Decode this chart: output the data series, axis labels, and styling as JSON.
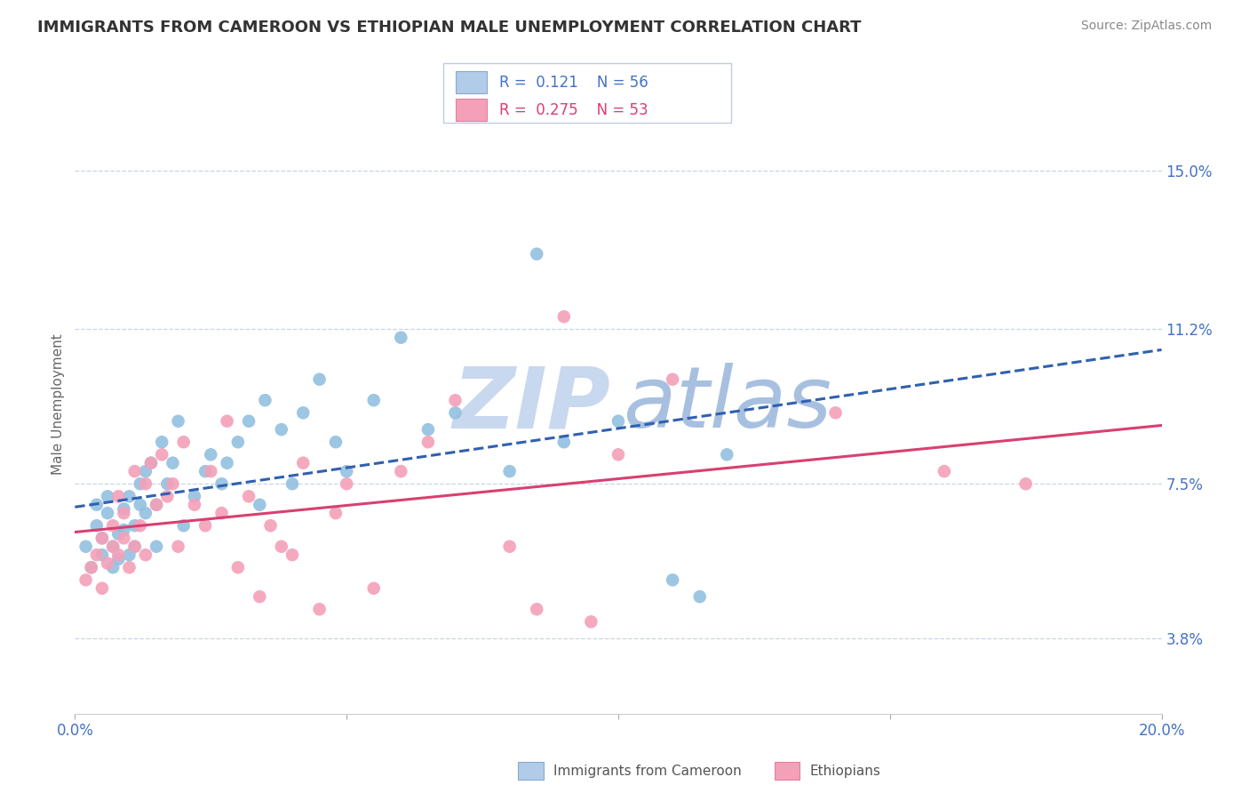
{
  "title": "IMMIGRANTS FROM CAMEROON VS ETHIOPIAN MALE UNEMPLOYMENT CORRELATION CHART",
  "source": "Source: ZipAtlas.com",
  "ylabel": "Male Unemployment",
  "xlim": [
    0.0,
    0.2
  ],
  "ylim": [
    0.02,
    0.168
  ],
  "yticks": [
    0.038,
    0.075,
    0.112,
    0.15
  ],
  "ytick_labels": [
    "3.8%",
    "7.5%",
    "11.2%",
    "15.0%"
  ],
  "xticks": [
    0.0,
    0.05,
    0.1,
    0.15,
    0.2
  ],
  "xtick_labels": [
    "0.0%",
    "",
    "",
    "",
    "20.0%"
  ],
  "series": [
    {
      "name": "Immigrants from Cameroon",
      "R": 0.121,
      "N": 56,
      "color": "#92c0e0",
      "line_color": "#3060b0",
      "line_style": "--",
      "x": [
        0.002,
        0.003,
        0.004,
        0.004,
        0.005,
        0.005,
        0.006,
        0.006,
        0.007,
        0.007,
        0.008,
        0.008,
        0.009,
        0.009,
        0.01,
        0.01,
        0.011,
        0.011,
        0.012,
        0.012,
        0.013,
        0.013,
        0.014,
        0.015,
        0.015,
        0.016,
        0.017,
        0.018,
        0.019,
        0.02,
        0.022,
        0.024,
        0.025,
        0.027,
        0.028,
        0.03,
        0.032,
        0.034,
        0.035,
        0.038,
        0.04,
        0.042,
        0.045,
        0.048,
        0.05,
        0.055,
        0.06,
        0.065,
        0.07,
        0.08,
        0.085,
        0.09,
        0.1,
        0.11,
        0.115,
        0.12
      ],
      "y": [
        0.06,
        0.055,
        0.065,
        0.07,
        0.058,
        0.062,
        0.068,
        0.072,
        0.055,
        0.06,
        0.063,
        0.057,
        0.064,
        0.069,
        0.058,
        0.072,
        0.06,
        0.065,
        0.07,
        0.075,
        0.068,
        0.078,
        0.08,
        0.06,
        0.07,
        0.085,
        0.075,
        0.08,
        0.09,
        0.065,
        0.072,
        0.078,
        0.082,
        0.075,
        0.08,
        0.085,
        0.09,
        0.07,
        0.095,
        0.088,
        0.075,
        0.092,
        0.1,
        0.085,
        0.078,
        0.095,
        0.11,
        0.088,
        0.092,
        0.078,
        0.13,
        0.085,
        0.09,
        0.052,
        0.048,
        0.082
      ]
    },
    {
      "name": "Ethiopians",
      "R": 0.275,
      "N": 53,
      "color": "#f4a0b8",
      "line_color": "#d84070",
      "line_style": "-",
      "x": [
        0.002,
        0.003,
        0.004,
        0.005,
        0.005,
        0.006,
        0.007,
        0.007,
        0.008,
        0.008,
        0.009,
        0.009,
        0.01,
        0.011,
        0.011,
        0.012,
        0.013,
        0.013,
        0.014,
        0.015,
        0.016,
        0.017,
        0.018,
        0.019,
        0.02,
        0.022,
        0.024,
        0.025,
        0.027,
        0.028,
        0.03,
        0.032,
        0.034,
        0.036,
        0.038,
        0.04,
        0.042,
        0.045,
        0.048,
        0.05,
        0.055,
        0.06,
        0.065,
        0.07,
        0.08,
        0.085,
        0.09,
        0.095,
        0.1,
        0.11,
        0.14,
        0.16,
        0.175
      ],
      "y": [
        0.052,
        0.055,
        0.058,
        0.05,
        0.062,
        0.056,
        0.06,
        0.065,
        0.058,
        0.072,
        0.062,
        0.068,
        0.055,
        0.06,
        0.078,
        0.065,
        0.058,
        0.075,
        0.08,
        0.07,
        0.082,
        0.072,
        0.075,
        0.06,
        0.085,
        0.07,
        0.065,
        0.078,
        0.068,
        0.09,
        0.055,
        0.072,
        0.048,
        0.065,
        0.06,
        0.058,
        0.08,
        0.045,
        0.068,
        0.075,
        0.05,
        0.078,
        0.085,
        0.095,
        0.06,
        0.045,
        0.115,
        0.042,
        0.082,
        0.1,
        0.092,
        0.078,
        0.075
      ]
    }
  ],
  "title_fontsize": 13,
  "axis_color": "#4472c4",
  "background_color": "#ffffff",
  "grid_color": "#c8d4e8",
  "watermark_zip_color": "#c8d8ee",
  "watermark_atlas_color": "#a8c0e0"
}
